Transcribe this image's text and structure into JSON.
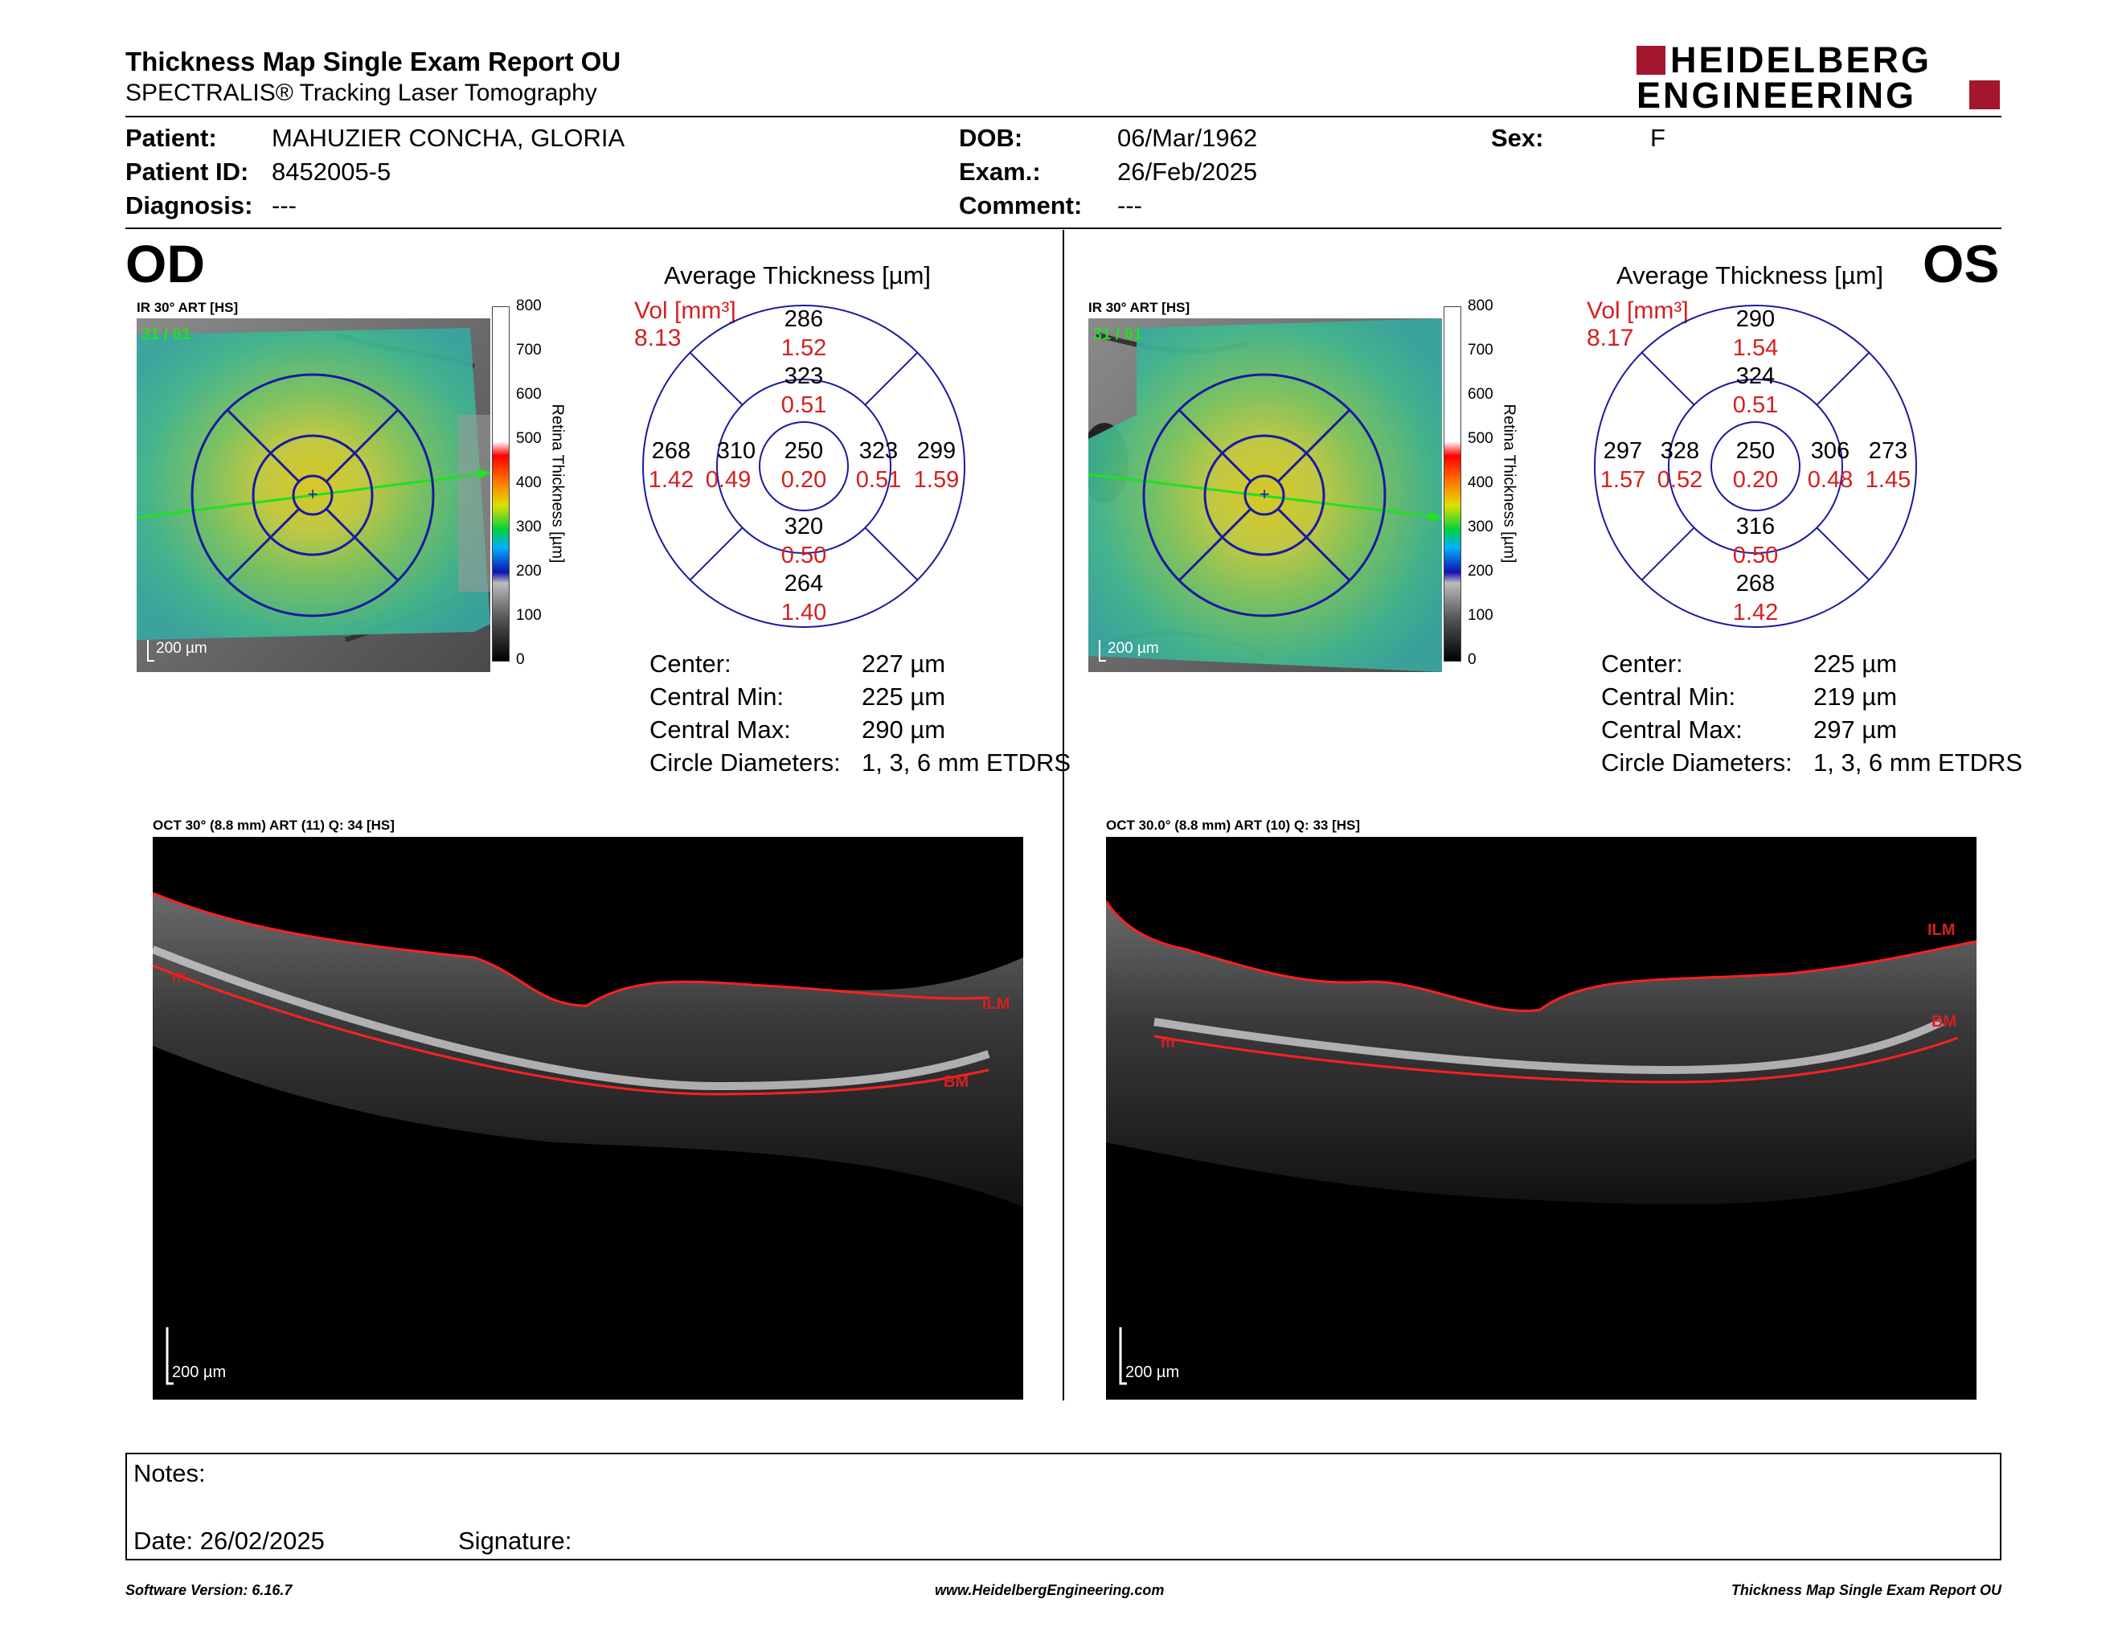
{
  "header": {
    "title": "Thickness Map Single Exam Report OU",
    "subtitle": "SPECTRALIS® Tracking Laser Tomography",
    "logo_line1": "HEIDELBERG",
    "logo_line2": "ENGINEERING"
  },
  "patient": {
    "patient_label": "Patient:",
    "patient_value": "MAHUZIER CONCHA, GLORIA",
    "id_label": "Patient ID:",
    "id_value": "8452005-5",
    "diag_label": "Diagnosis:",
    "diag_value": "---",
    "dob_label": "DOB:",
    "dob_value": "06/Mar/1962",
    "exam_label": "Exam.:",
    "exam_value": "26/Feb/2025",
    "comment_label": "Comment:",
    "comment_value": "---",
    "sex_label": "Sex:",
    "sex_value": "F"
  },
  "colorbar": {
    "ticks": [
      "800",
      "700",
      "600",
      "500",
      "400",
      "300",
      "200",
      "100",
      "0"
    ],
    "label": "Retina  Thickness [µm]"
  },
  "od": {
    "eye": "OD",
    "ir_label": "IR 30° ART [HS]",
    "ir_overlay": "31 / 61",
    "scale": "200 µm",
    "avg_title": "Average Thickness [µm]",
    "vol_label": "Vol [mm³]",
    "vol_value": "8.13",
    "etdrs": {
      "center": {
        "t": "250",
        "v": "0.20"
      },
      "inner_sup": {
        "t": "323",
        "v": "0.51"
      },
      "inner_inf": {
        "t": "320",
        "v": "0.50"
      },
      "inner_left": {
        "t": "310",
        "v": "0.49"
      },
      "inner_right": {
        "t": "323",
        "v": "0.51"
      },
      "outer_sup": {
        "t": "286",
        "v": "1.52"
      },
      "outer_inf": {
        "t": "264",
        "v": "1.40"
      },
      "outer_left": {
        "t": "268",
        "v": "1.42"
      },
      "outer_right": {
        "t": "299",
        "v": "1.59"
      }
    },
    "stats": [
      {
        "k": "Center:",
        "v": "227 µm"
      },
      {
        "k": "Central Min:",
        "v": "225 µm"
      },
      {
        "k": "Central Max:",
        "v": "290 µm"
      },
      {
        "k": "Circle Diameters:",
        "v": "1, 3, 6 mm ETDRS"
      }
    ],
    "oct_label": "OCT 30° (8.8 mm) ART (11) Q: 34 [HS]",
    "ilm": "ILM",
    "bm": "BM",
    "m": "m",
    "oct_scale": "200 µm"
  },
  "os": {
    "eye": "OS",
    "ir_label": "IR 30° ART [HS]",
    "ir_overlay": "31 / 61",
    "scale": "200 µm",
    "avg_title": "Average Thickness [µm]",
    "vol_label": "Vol [mm³]",
    "vol_value": "8.17",
    "etdrs": {
      "center": {
        "t": "250",
        "v": "0.20"
      },
      "inner_sup": {
        "t": "324",
        "v": "0.51"
      },
      "inner_inf": {
        "t": "316",
        "v": "0.50"
      },
      "inner_left": {
        "t": "328",
        "v": "0.52"
      },
      "inner_right": {
        "t": "306",
        "v": "0.48"
      },
      "outer_sup": {
        "t": "290",
        "v": "1.54"
      },
      "outer_inf": {
        "t": "268",
        "v": "1.42"
      },
      "outer_left": {
        "t": "297",
        "v": "1.57"
      },
      "outer_right": {
        "t": "273",
        "v": "1.45"
      }
    },
    "stats": [
      {
        "k": "Center:",
        "v": "225 µm"
      },
      {
        "k": "Central Min:",
        "v": "219 µm"
      },
      {
        "k": "Central Max:",
        "v": "297 µm"
      },
      {
        "k": "Circle Diameters:",
        "v": "1, 3, 6 mm ETDRS"
      }
    ],
    "oct_label": "OCT 30.0° (8.8 mm) ART (10) Q: 33 [HS]",
    "ilm": "ILM",
    "bm": "BM",
    "m": "m",
    "oct_scale": "200 µm"
  },
  "notes": {
    "notes_label": "Notes:",
    "date_label": "Date: 26/02/2025",
    "signature_label": "Signature:"
  },
  "footer": {
    "left": "Software Version: 6.16.7",
    "center": "www.HeidelbergEngineering.com",
    "right": "Thickness Map Single Exam Report OU"
  },
  "colors": {
    "brand": "#a3162e",
    "red": "#d42020",
    "grid": "#1a1aa0",
    "green": "#22e022"
  }
}
